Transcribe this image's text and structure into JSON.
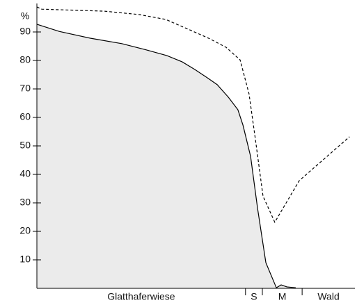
{
  "chart_data": {
    "type": "line",
    "y_label": "%",
    "xlim": [
      0,
      100
    ],
    "ylim": [
      0,
      100
    ],
    "yticks": [
      10,
      20,
      30,
      40,
      50,
      60,
      70,
      80,
      90
    ],
    "x_boundaries": [
      65.6,
      70.9,
      83.4
    ],
    "zones": [
      "Glatthaferwiese",
      "S",
      "M",
      "Wald"
    ],
    "series": [
      {
        "color": "#000000",
        "fill": "#ebebeb",
        "dash": false,
        "x": [
          0,
          7,
          16.8,
          26.7,
          34.4,
          40.9,
          45.7,
          49.7,
          53.6,
          56.7,
          60.2,
          63.2,
          64.8,
          67.2,
          69.4,
          72,
          75.3,
          76.8,
          78.6,
          81.4
        ],
        "values": [
          92.7,
          90.2,
          87.8,
          85.9,
          83.7,
          81.7,
          79.5,
          76.8,
          73.9,
          71.5,
          67.1,
          62.7,
          57.3,
          46.3,
          28,
          9,
          0.2,
          1.2,
          0.5,
          0.2
        ]
      },
      {
        "color": "#000000",
        "dash": true,
        "x": [
          0,
          1.5,
          21.2,
          32.2,
          40.5,
          47.5,
          54,
          59.5,
          63.9,
          66.7,
          68.7,
          71.1,
          74.8,
          82.5,
          98.3
        ],
        "values": [
          98.8,
          98,
          97.3,
          96.1,
          94.4,
          91,
          87.8,
          84.6,
          80.2,
          68.3,
          52.4,
          32.4,
          23.2,
          37.8,
          53.2
        ]
      }
    ]
  }
}
